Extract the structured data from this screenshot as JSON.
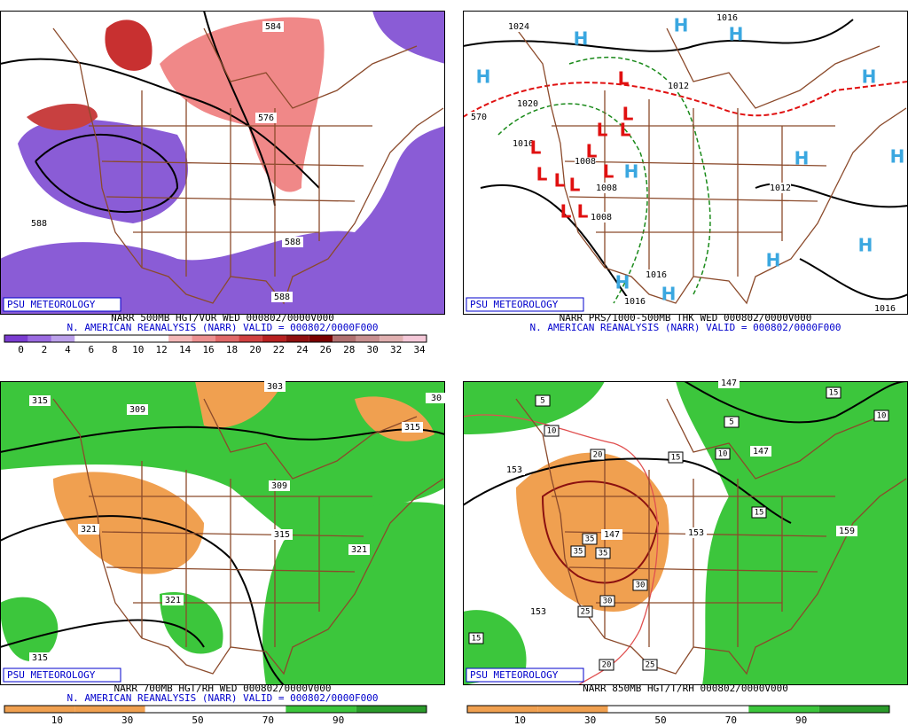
{
  "panels": [
    {
      "logo": "PSU METEOROLOGY",
      "caption": "NARR 500MB HGT/VOR WED 000802/0000V000",
      "subtitle": "N. AMERICAN REANALYSIS (NARR) VALID = 000802/0000F000",
      "labels": [
        "584",
        "576",
        "588",
        "588",
        "588"
      ],
      "markers": [],
      "boxed_labels": [],
      "colorbar": [
        "0",
        "2",
        "4",
        "6",
        "8",
        "10",
        "12",
        "14",
        "16",
        "18",
        "20",
        "22",
        "24",
        "26",
        "28",
        "30",
        "32",
        "34"
      ]
    },
    {
      "logo": "PSU METEOROLOGY",
      "caption": "NARR PRS/1000-500MB THK WED 000802/0000V000",
      "subtitle": "N. AMERICAN REANALYSIS (NARR) VALID = 000802/0000F000",
      "labels": [
        "1016",
        "1024",
        "1020",
        "1012",
        "1016",
        "1008",
        "1008",
        "1008",
        "1016",
        "1016",
        "1016",
        "1012",
        "570"
      ],
      "markers": [
        "H",
        "H",
        "H",
        "H",
        "H",
        "H",
        "H",
        "H",
        "H",
        "H",
        "H",
        "H",
        "L",
        "L",
        "L",
        "L",
        "L",
        "L",
        "L",
        "L",
        "L",
        "L",
        "L",
        "L"
      ],
      "boxed_labels": [],
      "colorbar": []
    },
    {
      "logo": "PSU METEOROLOGY",
      "caption": "NARR 700MB HGT/RH WED 000802/0000V000",
      "subtitle": "N. AMERICAN REANALYSIS (NARR) VALID = 000802/0000F000",
      "labels": [
        "315",
        "309",
        "303",
        "309",
        "315",
        "321",
        "321",
        "321",
        "315",
        "315",
        "30"
      ],
      "markers": [],
      "boxed_labels": [],
      "colorbar": [
        "10",
        "30",
        "50",
        "70",
        "90"
      ]
    },
    {
      "logo": "PSU METEOROLOGY",
      "caption": "NARR 850MB HGT/T/RH 000802/0000V000",
      "subtitle": "",
      "labels": [
        "153",
        "153",
        "153",
        "159",
        "147",
        "147",
        "147"
      ],
      "markers": [],
      "boxed_labels": [
        "5",
        "10",
        "20",
        "15",
        "5",
        "10",
        "15",
        "35",
        "35",
        "35",
        "30",
        "30",
        "25",
        "20",
        "25",
        "15",
        "15",
        "10"
      ],
      "colorbar": [
        "10",
        "30",
        "50",
        "70",
        "90"
      ]
    }
  ]
}
